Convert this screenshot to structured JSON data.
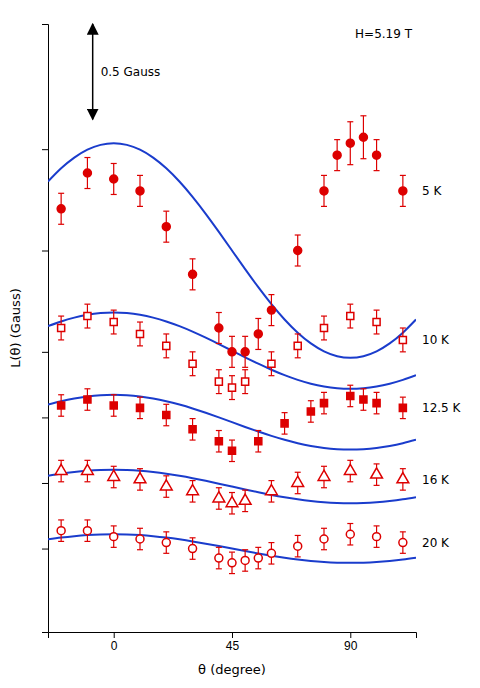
{
  "chart_data": {
    "type": "scatter",
    "xlabel": "θ (degree)",
    "ylabel": "L(θ) (Gauss)",
    "xlim": [
      -25,
      115
    ],
    "xticks": [
      0,
      45,
      90
    ],
    "ylim": [
      0.3,
      5.4
    ],
    "yticks": [
      1.0,
      1.55,
      2.1,
      2.65,
      3.5,
      4.35
    ],
    "tick_labels": "x",
    "grid": false,
    "annotations": [
      {
        "text": "H=5.19 T"
      }
    ],
    "scale_bar": {
      "x": -8,
      "y": [
        4.6,
        5.4
      ],
      "label": "0.5 Gauss"
    },
    "series": [
      {
        "name": "5 K",
        "type": "scatter",
        "marker": "circle_filled",
        "color": "#dd0000",
        "x": [
          -20,
          -10,
          0,
          10,
          20,
          30,
          40,
          45,
          50,
          55,
          60,
          70,
          80,
          85,
          90,
          95,
          100,
          110
        ],
        "values": [
          3.85,
          4.15,
          4.1,
          4.0,
          3.7,
          3.3,
          2.85,
          2.65,
          2.65,
          2.8,
          3.0,
          3.5,
          4.0,
          4.3,
          4.4,
          4.45,
          4.3,
          4.0
        ],
        "errors": [
          0.13,
          0.13,
          0.13,
          0.13,
          0.13,
          0.13,
          0.13,
          0.13,
          0.13,
          0.13,
          0.13,
          0.13,
          0.13,
          0.13,
          0.18,
          0.18,
          0.13,
          0.13
        ]
      },
      {
        "type": "line",
        "color": "#1a3ccc",
        "x": [
          -25,
          -20,
          -15,
          -10,
          -5,
          0,
          5,
          10,
          15,
          20,
          25,
          30,
          35,
          40,
          45,
          50,
          55,
          60,
          65,
          70,
          75,
          80,
          85,
          90,
          95,
          100,
          105,
          110,
          115
        ],
        "values": [
          4.0785,
          4.1894,
          4.2794,
          4.3457,
          4.3863,
          4.4,
          4.3863,
          4.3457,
          4.2794,
          4.1894,
          4.0785,
          3.95,
          3.8078,
          3.6563,
          3.5,
          3.3437,
          3.1922,
          3.05,
          2.9215,
          2.8106,
          2.7206,
          2.6543,
          2.6137,
          2.6,
          2.6137,
          2.6543,
          2.7206,
          2.8106,
          2.9215
        ]
      },
      {
        "name": "10 K",
        "type": "scatter",
        "marker": "square_open",
        "color": "#dd0000",
        "x": [
          -20,
          -10,
          0,
          10,
          20,
          30,
          40,
          45,
          50,
          60,
          70,
          80,
          90,
          100,
          110
        ],
        "values": [
          2.85,
          2.95,
          2.9,
          2.8,
          2.7,
          2.55,
          2.4,
          2.35,
          2.4,
          2.55,
          2.7,
          2.85,
          2.95,
          2.9,
          2.75
        ],
        "errors": [
          0.1,
          0.1,
          0.1,
          0.1,
          0.1,
          0.1,
          0.1,
          0.1,
          0.1,
          0.1,
          0.1,
          0.1,
          0.1,
          0.1,
          0.1
        ]
      },
      {
        "type": "line",
        "color": "#1a3ccc",
        "x": [
          -25,
          -20,
          -15,
          -10,
          -5,
          0,
          5,
          10,
          15,
          20,
          25,
          30,
          35,
          40,
          45,
          50,
          55,
          60,
          65,
          70,
          75,
          80,
          85,
          90,
          95,
          100,
          105,
          110,
          115
        ],
        "values": [
          2.8657,
          2.9051,
          2.9371,
          2.9607,
          2.9751,
          2.98,
          2.9751,
          2.9607,
          2.9371,
          2.9051,
          2.8657,
          2.82,
          2.7694,
          2.7156,
          2.66,
          2.6044,
          2.5506,
          2.5,
          2.4543,
          2.4149,
          2.3829,
          2.3593,
          2.3449,
          2.34,
          2.3449,
          2.3593,
          2.3829,
          2.4149,
          2.4543
        ]
      },
      {
        "name": "12.5 K",
        "type": "scatter",
        "marker": "square_filled",
        "color": "#dd0000",
        "x": [
          -20,
          -10,
          0,
          10,
          20,
          30,
          40,
          45,
          55,
          65,
          75,
          80,
          90,
          95,
          100,
          110
        ],
        "values": [
          2.2,
          2.25,
          2.2,
          2.18,
          2.12,
          2.0,
          1.9,
          1.82,
          1.9,
          2.05,
          2.15,
          2.22,
          2.28,
          2.25,
          2.22,
          2.18
        ],
        "errors": [
          0.09,
          0.09,
          0.09,
          0.09,
          0.09,
          0.09,
          0.09,
          0.09,
          0.09,
          0.09,
          0.09,
          0.09,
          0.09,
          0.09,
          0.09,
          0.09
        ]
      },
      {
        "type": "line",
        "color": "#1a3ccc",
        "x": [
          -25,
          -20,
          -15,
          -10,
          -5,
          0,
          5,
          10,
          15,
          20,
          25,
          30,
          35,
          40,
          45,
          50,
          55,
          60,
          65,
          70,
          75,
          80,
          85,
          90,
          95,
          100,
          105,
          110,
          115
        ],
        "values": [
          2.2078,
          2.2362,
          2.2592,
          2.2761,
          2.2865,
          2.29,
          2.2865,
          2.2761,
          2.2592,
          2.2362,
          2.2078,
          2.175,
          2.1387,
          2.0999,
          2.06,
          2.0201,
          1.9813,
          1.945,
          1.9122,
          1.8838,
          1.8608,
          1.8439,
          1.8335,
          1.83,
          1.8335,
          1.8439,
          1.8608,
          1.8838,
          1.9122
        ]
      },
      {
        "name": "16 K",
        "type": "scatter",
        "marker": "triangle_open",
        "color": "#dd0000",
        "x": [
          -20,
          -10,
          0,
          10,
          20,
          30,
          40,
          45,
          50,
          60,
          70,
          80,
          90,
          100,
          110
        ],
        "values": [
          1.65,
          1.65,
          1.6,
          1.58,
          1.52,
          1.48,
          1.42,
          1.38,
          1.4,
          1.48,
          1.55,
          1.6,
          1.65,
          1.62,
          1.58
        ],
        "errors": [
          0.09,
          0.09,
          0.09,
          0.09,
          0.09,
          0.09,
          0.09,
          0.09,
          0.09,
          0.09,
          0.09,
          0.09,
          0.09,
          0.09,
          0.09
        ]
      },
      {
        "type": "line",
        "color": "#1a3ccc",
        "x": [
          -25,
          -20,
          -15,
          -10,
          -5,
          0,
          5,
          10,
          15,
          20,
          25,
          30,
          35,
          40,
          45,
          50,
          55,
          60,
          65,
          70,
          75,
          80,
          85,
          90,
          95,
          100,
          105,
          110,
          115
        ],
        "values": [
          1.61,
          1.6272,
          1.6412,
          1.6516,
          1.6579,
          1.66,
          1.6579,
          1.6516,
          1.6412,
          1.6272,
          1.61,
          1.59,
          1.5679,
          1.5443,
          1.52,
          1.4957,
          1.4721,
          1.45,
          1.43,
          1.4128,
          1.3988,
          1.3884,
          1.3821,
          1.38,
          1.3821,
          1.3884,
          1.3988,
          1.4128,
          1.43
        ]
      },
      {
        "name": "20 K",
        "type": "scatter",
        "marker": "circle_open",
        "color": "#dd0000",
        "x": [
          -20,
          -10,
          0,
          10,
          20,
          30,
          40,
          45,
          50,
          55,
          60,
          70,
          80,
          90,
          100,
          110
        ],
        "values": [
          1.15,
          1.15,
          1.1,
          1.08,
          1.05,
          1.0,
          0.92,
          0.88,
          0.9,
          0.92,
          0.96,
          1.02,
          1.08,
          1.12,
          1.1,
          1.05
        ],
        "errors": [
          0.09,
          0.09,
          0.09,
          0.09,
          0.09,
          0.09,
          0.09,
          0.09,
          0.09,
          0.09,
          0.09,
          0.09,
          0.09,
          0.09,
          0.09,
          0.09
        ]
      },
      {
        "type": "line",
        "color": "#1a3ccc",
        "x": [
          -25,
          -20,
          -15,
          -10,
          -5,
          0,
          5,
          10,
          15,
          20,
          25,
          30,
          35,
          40,
          45,
          50,
          55,
          60,
          65,
          70,
          75,
          80,
          85,
          90,
          95,
          100,
          105,
          110,
          115
        ],
        "values": [
          1.0771,
          1.0919,
          1.1039,
          1.1128,
          1.1182,
          1.12,
          1.1182,
          1.1128,
          1.1039,
          1.0919,
          1.0771,
          1.06,
          1.041,
          1.0208,
          1.0,
          0.9792,
          0.959,
          0.94,
          0.9229,
          0.9081,
          0.8961,
          0.8872,
          0.8818,
          0.88,
          0.8818,
          0.8872,
          0.8961,
          0.9081,
          0.9229
        ]
      }
    ]
  }
}
